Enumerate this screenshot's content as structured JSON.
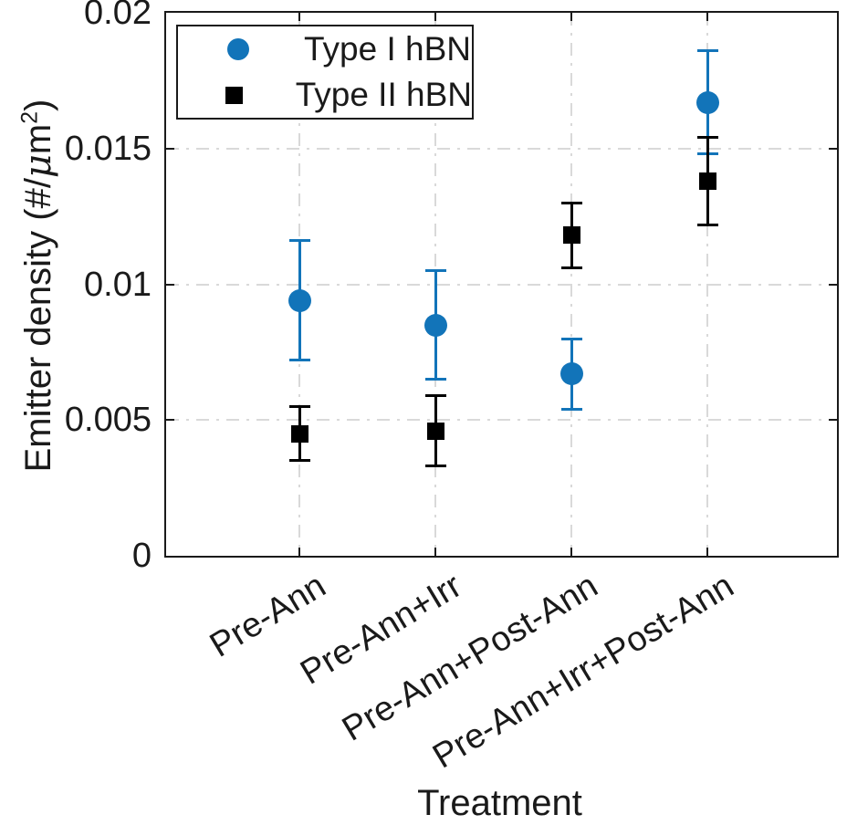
{
  "labels": {
    "xlabel": "Treatment",
    "ylabel_prefix": "Emitter density (#/",
    "ylabel_mu": "μ",
    "ylabel_m": "m",
    "ylabel_sup": "2",
    "ylabel_close": ")"
  },
  "legend": {
    "items": [
      {
        "label": "Type I hBN",
        "marker": "circle",
        "color": "#1274b9"
      },
      {
        "label": "Type II hBN",
        "marker": "square",
        "color": "#000000"
      }
    ]
  },
  "colors": {
    "axis": "#1a1a1a",
    "grid": "#d9d9d9",
    "text": "#1a1a1a",
    "blue": "#1274b9",
    "black": "#000000"
  },
  "chart_data": {
    "type": "scatter",
    "title": "",
    "xlabel": "Treatment",
    "ylabel": "Emitter density (#/μm^2)",
    "categories": [
      "Pre-Ann",
      "Pre-Ann+Irr",
      "Pre-Ann+Post-Ann",
      "Pre-Ann+Irr+Post-Ann"
    ],
    "x": [
      1,
      2,
      3,
      4
    ],
    "xlim": [
      0.02,
      4.95
    ],
    "ylim": [
      0,
      0.02
    ],
    "yticks": [
      0,
      0.005,
      0.01,
      0.015,
      0.02
    ],
    "ytick_labels": [
      "0",
      "0.005",
      "0.01",
      "0.015",
      "0.02"
    ],
    "grid": "on",
    "grid_style": "dash-dot",
    "legend_position": "upper-left-inside",
    "series": [
      {
        "name": "Type I hBN",
        "marker": "circle",
        "color": "#1274b9",
        "values": [
          0.0094,
          0.0085,
          0.0067,
          0.0167
        ],
        "errors": [
          0.0022,
          0.002,
          0.0013,
          0.0019
        ]
      },
      {
        "name": "Type II hBN",
        "marker": "square",
        "color": "#000000",
        "values": [
          0.0045,
          0.0046,
          0.0118,
          0.0138
        ],
        "errors": [
          0.001,
          0.0013,
          0.0012,
          0.0016
        ]
      }
    ]
  }
}
